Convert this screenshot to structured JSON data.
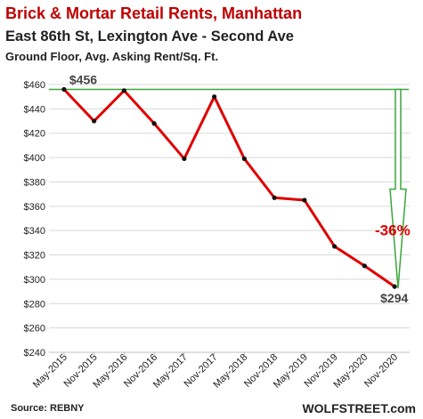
{
  "header": {
    "title": "Brick & Mortar Retail Rents, Manhattan",
    "subtitle": "East 86th St, Lexington Ave - Second Ave",
    "subtitle2": "Ground Floor, Avg. Asking Rent/Sq. Ft."
  },
  "footer": {
    "source": "Source: REBNY",
    "brand": "WOLFSTREET.com"
  },
  "colors": {
    "line": "#e00000",
    "marker": "#111111",
    "reference": "#3aa63a",
    "grid": "#d9d9d9",
    "title": "#c00000",
    "pct": "#e00000"
  },
  "chart_data": {
    "type": "line",
    "title": "Brick & Mortar Retail Rents, Manhattan",
    "subtitle": "East 86th St, Lexington Ave - Second Ave",
    "ylabel": "Ground Floor, Avg. Asking Rent/Sq. Ft.",
    "categories": [
      "May-2015",
      "Nov-2015",
      "May-2016",
      "Nov-2016",
      "May-2017",
      "Nov-2017",
      "May-2018",
      "Nov-2018",
      "May-2019",
      "Nov-2019",
      "May-2020",
      "Nov-2020"
    ],
    "series": [
      {
        "values": [
          456,
          430,
          455,
          428,
          399,
          450,
          399,
          367,
          365,
          327,
          311,
          294
        ]
      }
    ],
    "ylim": [
      240,
      460
    ],
    "yticks": [
      240,
      260,
      280,
      300,
      320,
      340,
      360,
      380,
      400,
      420,
      440,
      460
    ],
    "ytick_labels": [
      "$240",
      "$260",
      "$280",
      "$300",
      "$320",
      "$340",
      "$360",
      "$380",
      "$400",
      "$420",
      "$440",
      "$460"
    ],
    "grid": "horizontal",
    "reference_line": 456,
    "annotations": {
      "start": "$456",
      "end": "$294",
      "change": "-36%"
    }
  }
}
